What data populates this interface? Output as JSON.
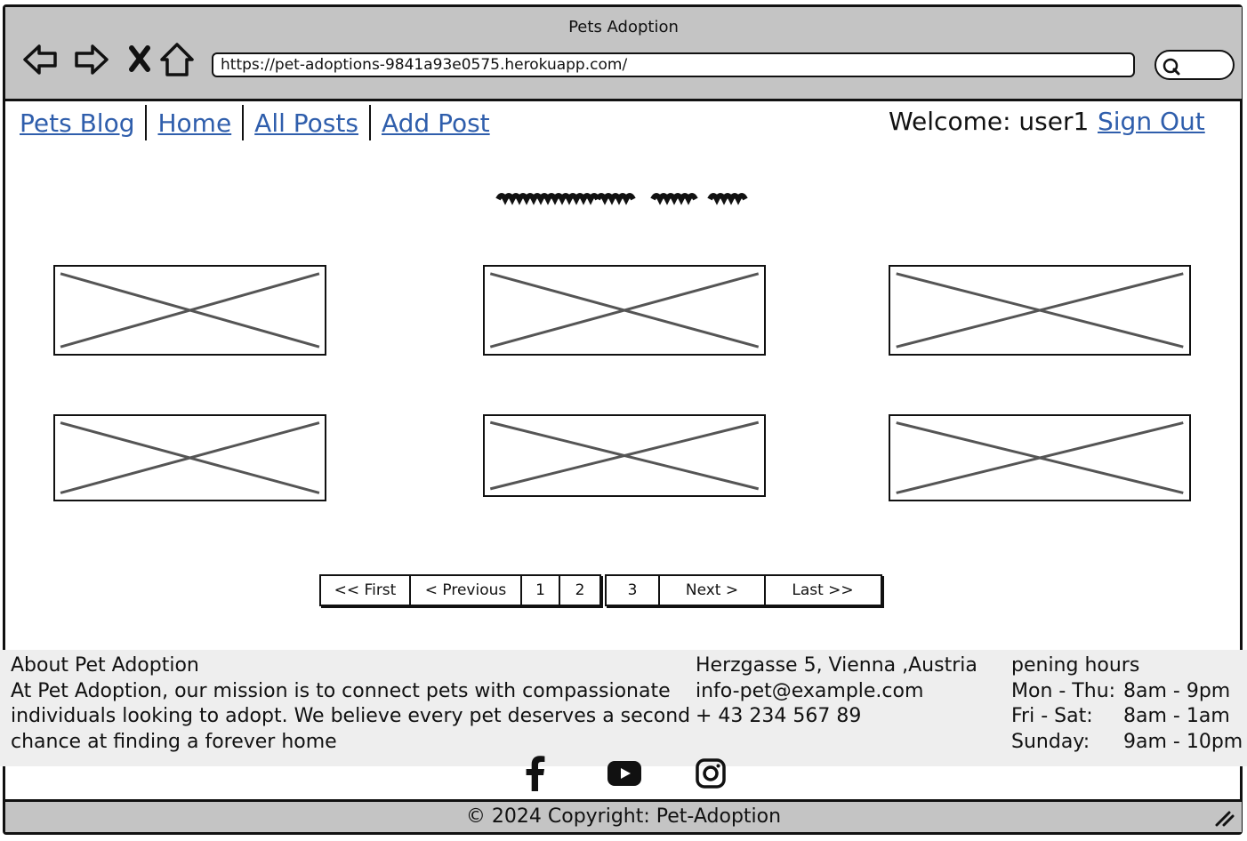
{
  "browser": {
    "title": "Pets Adoption",
    "url": "https://pet-adoptions-9841a93e0575.herokuapp.com/",
    "icons": [
      "back-arrow-icon",
      "forward-arrow-icon",
      "close-icon",
      "home-icon",
      "search-icon"
    ]
  },
  "nav": {
    "brand": "Pets Blog",
    "links": [
      "Home",
      "All Posts",
      "Add Post"
    ],
    "welcome": "Welcome: user1",
    "signout": "Sign Out",
    "link_color": "#2f5eac"
  },
  "pagination": {
    "first": "<< First",
    "previous": "< Previous",
    "pages": [
      "1",
      "2",
      "3"
    ],
    "next": "Next >",
    "last": "Last >>"
  },
  "footer": {
    "about_title": "About Pet Adoption",
    "about_lines": [
      "At Pet Adoption, our mission is to connect pets with compassionate",
      "individuals looking to adopt. We believe every pet deserves a second",
      "chance at finding a forever home"
    ],
    "contact": [
      "Herzgasse 5, Vienna ,Austria",
      "info-pet@example.com",
      "+ 43 234 567 89"
    ],
    "hours_title": "pening hours",
    "hours": [
      {
        "day": "Mon - Thu:",
        "time": "8am - 9pm"
      },
      {
        "day": "Fri - Sat:",
        "time": "8am - 1am"
      },
      {
        "day": "Sunday:",
        "time": "9am - 10pm"
      }
    ],
    "socials": [
      "facebook-icon",
      "youtube-icon",
      "instagram-icon"
    ],
    "copyright": "© 2024 Copyright: Pet-Adoption"
  }
}
